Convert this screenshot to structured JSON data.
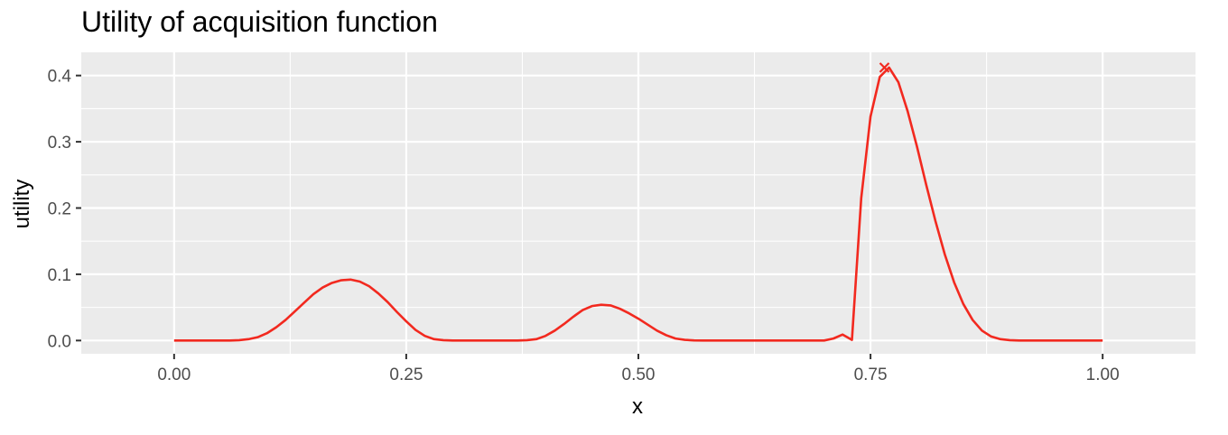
{
  "chart_data": {
    "type": "line",
    "title": "Utility of acquisition function",
    "xlabel": "x",
    "ylabel": "utility",
    "xlim": [
      -0.1,
      1.1
    ],
    "ylim": [
      -0.02,
      0.435
    ],
    "x_ticks": [
      0.0,
      0.25,
      0.5,
      0.75,
      1.0
    ],
    "x_tick_labels": [
      "0.00",
      "0.25",
      "0.50",
      "0.75",
      "1.00"
    ],
    "y_ticks": [
      0.0,
      0.1,
      0.2,
      0.3,
      0.4
    ],
    "y_tick_labels": [
      "0.0",
      "0.1",
      "0.2",
      "0.3",
      "0.4"
    ],
    "grid": true,
    "legend": "none",
    "colors": {
      "panel_background": "#ebebeb",
      "grid": "#ffffff",
      "line": "#f2291f"
    },
    "series": [
      {
        "x": [
          0.0,
          0.01,
          0.02,
          0.03,
          0.04,
          0.05,
          0.06,
          0.07,
          0.08,
          0.09,
          0.1,
          0.11,
          0.12,
          0.13,
          0.14,
          0.15,
          0.16,
          0.17,
          0.18,
          0.19,
          0.2,
          0.21,
          0.22,
          0.23,
          0.24,
          0.25,
          0.26,
          0.27,
          0.28,
          0.29,
          0.3,
          0.31,
          0.32,
          0.33,
          0.34,
          0.35,
          0.36,
          0.37,
          0.38,
          0.39,
          0.4,
          0.41,
          0.42,
          0.43,
          0.44,
          0.45,
          0.46,
          0.47,
          0.48,
          0.49,
          0.5,
          0.51,
          0.52,
          0.53,
          0.54,
          0.55,
          0.56,
          0.57,
          0.58,
          0.59,
          0.6,
          0.61,
          0.62,
          0.63,
          0.64,
          0.65,
          0.66,
          0.67,
          0.68,
          0.69,
          0.7,
          0.71,
          0.72,
          0.73,
          0.74,
          0.75,
          0.76,
          0.77,
          0.78,
          0.79,
          0.8,
          0.81,
          0.82,
          0.83,
          0.84,
          0.85,
          0.86,
          0.87,
          0.88,
          0.89,
          0.9,
          0.91,
          0.92,
          0.93,
          0.94,
          0.95,
          0.96,
          0.97,
          0.98,
          0.99,
          1.0
        ],
        "y": [
          0.0,
          0.0,
          0.0,
          0.0,
          0.0,
          0.0,
          0.0,
          0.0005,
          0.002,
          0.005,
          0.011,
          0.02,
          0.031,
          0.044,
          0.057,
          0.07,
          0.08,
          0.087,
          0.091,
          0.092,
          0.089,
          0.082,
          0.071,
          0.058,
          0.043,
          0.029,
          0.016,
          0.007,
          0.002,
          0.0005,
          0.0,
          0.0,
          0.0,
          0.0,
          0.0,
          0.0,
          0.0,
          0.0,
          0.0005,
          0.002,
          0.007,
          0.015,
          0.025,
          0.036,
          0.046,
          0.052,
          0.054,
          0.053,
          0.048,
          0.041,
          0.033,
          0.024,
          0.015,
          0.008,
          0.003,
          0.001,
          0.0002,
          0.0,
          0.0,
          0.0,
          0.0,
          0.0,
          0.0,
          0.0,
          0.0,
          0.0,
          0.0,
          0.0,
          0.0,
          0.0,
          0.0,
          0.003,
          0.009,
          0.001,
          0.215,
          0.338,
          0.398,
          0.412,
          0.39,
          0.346,
          0.293,
          0.235,
          0.18,
          0.13,
          0.088,
          0.055,
          0.031,
          0.015,
          0.006,
          0.002,
          0.0005,
          0.0,
          0.0,
          0.0,
          0.0,
          0.0,
          0.0,
          0.0,
          0.0,
          0.0,
          0.0
        ]
      }
    ],
    "annotations": [
      {
        "type": "point",
        "marker": "x",
        "x": 0.765,
        "y": 0.412
      }
    ]
  }
}
